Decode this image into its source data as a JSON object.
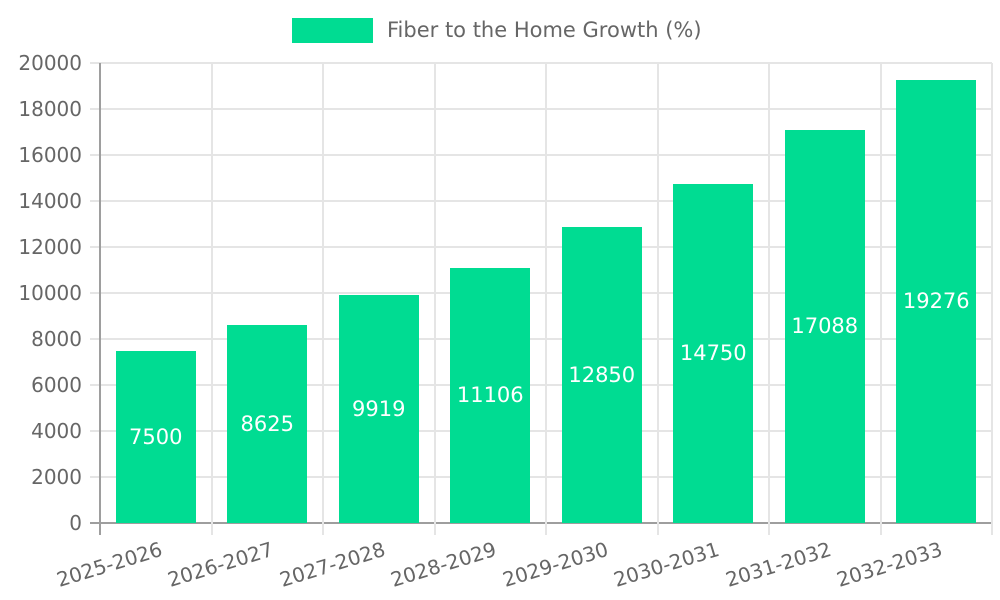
{
  "legend": {
    "label": "Fiber to the Home Growth (%)"
  },
  "chart_data": {
    "type": "bar",
    "title": "Fiber to the Home Growth (%)",
    "categories": [
      "2025-2026",
      "2026-2027",
      "2027-2028",
      "2028-2029",
      "2029-2030",
      "2030-2031",
      "2031-2032",
      "2032-2033"
    ],
    "series": [
      {
        "name": "Fiber to the Home Growth (%)",
        "values": [
          7500,
          8625,
          9919,
          11106,
          12850,
          14750,
          17088,
          19276
        ]
      }
    ],
    "bar_value_labels": [
      "7500",
      "8625",
      "9919",
      "11106",
      "12850",
      "14750",
      "17088",
      "19276"
    ],
    "xlabel": "",
    "ylabel": "",
    "ylim": [
      0,
      20000
    ],
    "ytick_step": 2000,
    "ytick_labels": [
      "0",
      "2000",
      "4000",
      "6000",
      "8000",
      "10000",
      "12000",
      "14000",
      "16000",
      "18000",
      "20000"
    ],
    "grid": true,
    "legend_position": "top-center",
    "x_label_rotation_deg": -17,
    "colors": {
      "bar": "#00DC92",
      "bar_label_text": "#ffffff",
      "axis_text": "#666666",
      "grid_line": "#e5e5e5",
      "axis_line": "#9e9e9e",
      "background": "#ffffff"
    }
  }
}
